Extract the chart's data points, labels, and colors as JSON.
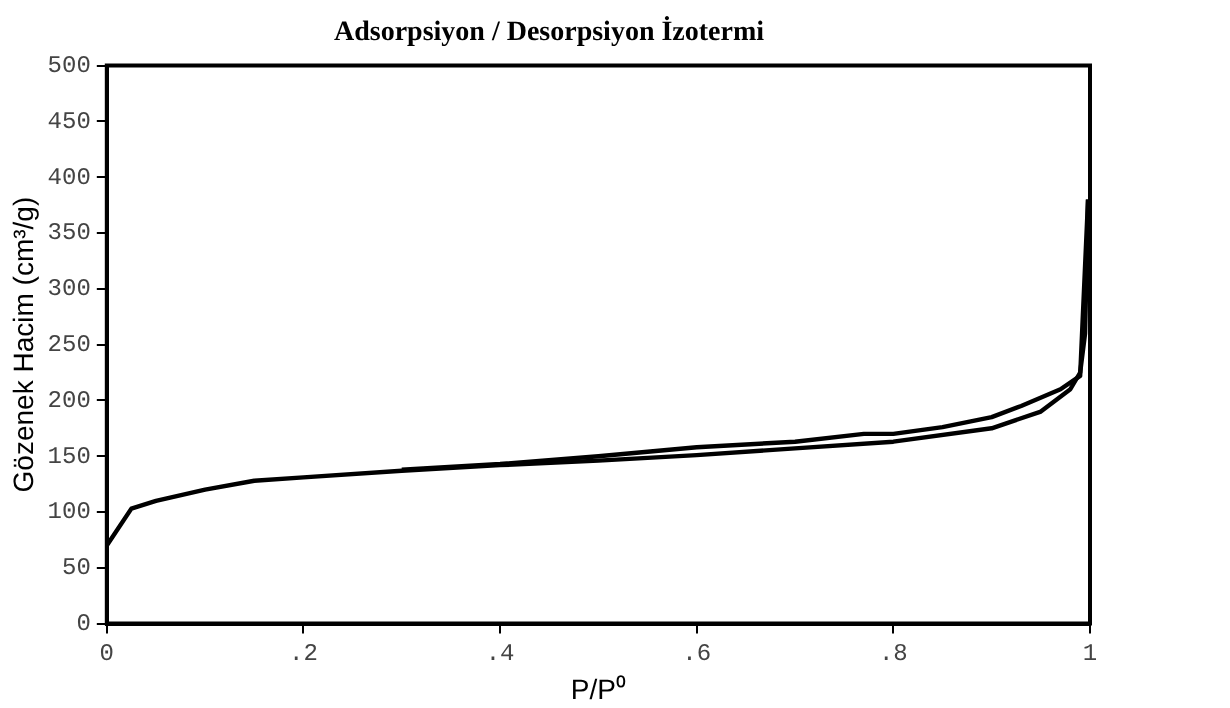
{
  "chart_data": {
    "type": "line",
    "title": "Adsorpsiyon / Desorpsiyon İzotermi",
    "xlabel": "P/P⁰",
    "ylabel": "Gözenek Hacim (cm³/g)",
    "series": [
      {
        "color": "#000000",
        "x": [
          0,
          0.025,
          0.05,
          0.1,
          0.15,
          0.2,
          0.3,
          0.4,
          0.5,
          0.6,
          0.7,
          0.8,
          0.9,
          0.95,
          0.98,
          0.99,
          0.995,
          0.998
        ],
        "values": [
          70,
          103,
          110,
          120,
          128,
          131,
          137,
          142,
          146,
          151,
          157,
          163,
          175,
          190,
          210,
          225,
          260,
          380
        ]
      },
      {
        "color": "#000000",
        "x": [
          0.998,
          0.99,
          0.97,
          0.93,
          0.9,
          0.85,
          0.8,
          0.77,
          0.7,
          0.6,
          0.5,
          0.4,
          0.3
        ],
        "values": [
          380,
          222,
          210,
          195,
          185,
          176,
          170,
          170,
          163,
          158,
          150,
          143,
          138
        ]
      }
    ],
    "xlim": [
      0,
      1
    ],
    "xticks": [
      0,
      {
        "value": 0.2,
        "label": ".2"
      },
      {
        "value": 0.4,
        "label": ".4"
      },
      {
        "value": 0.6,
        "label": ".6"
      },
      {
        "value": 0.8,
        "label": ".8"
      },
      1
    ],
    "ylim": [
      0,
      500
    ],
    "yticks": [
      0,
      50,
      100,
      150,
      200,
      250,
      300,
      350,
      400,
      450,
      500
    ],
    "grid": false,
    "legend": false,
    "marker": "none",
    "line_style": "solid"
  }
}
